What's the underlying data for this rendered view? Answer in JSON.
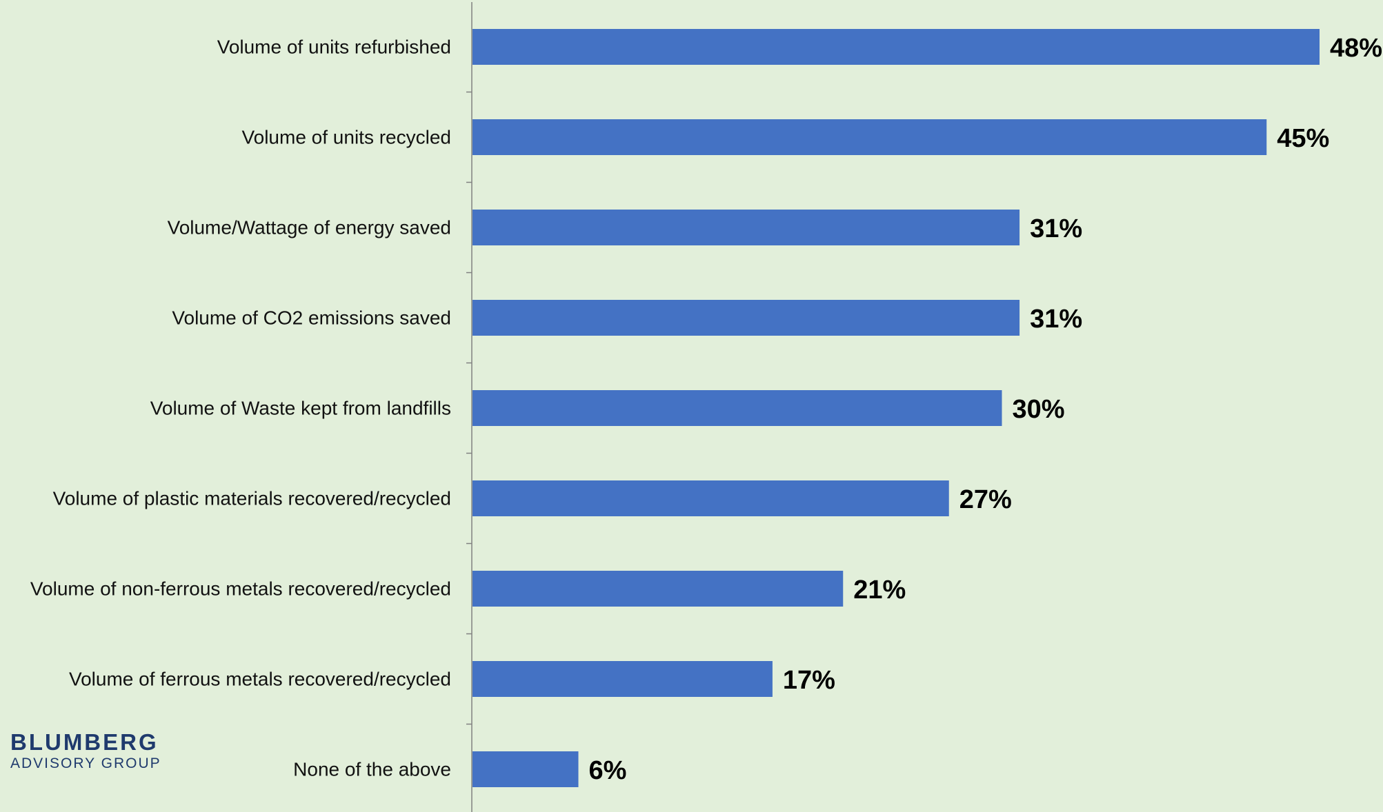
{
  "chart_data": {
    "type": "bar",
    "orientation": "horizontal",
    "categories": [
      "Volume of units refurbished",
      "Volume of units recycled",
      "Volume/Wattage of energy saved",
      "Volume of CO2 emissions saved",
      "Volume of Waste kept from landfills",
      "Volume of plastic materials recovered/recycled",
      "Volume of non-ferrous metals recovered/recycled",
      "Volume of ferrous metals recovered/recycled",
      "None of the above"
    ],
    "values": [
      48,
      45,
      31,
      31,
      30,
      27,
      21,
      17,
      6
    ],
    "value_labels": [
      "48%",
      "45%",
      "31%",
      "31%",
      "30%",
      "27%",
      "21%",
      "17%",
      "6%"
    ],
    "unit": "%",
    "xlim": [
      0,
      48
    ],
    "grid": false,
    "legend": "none",
    "colors": {
      "bar": "#4472c4",
      "background": "#e2efda",
      "axis": "#808080",
      "logo": "#1f3a6d"
    }
  },
  "logo": {
    "name": "BLUMBERG",
    "subtitle": "ADVISORY GROUP"
  }
}
